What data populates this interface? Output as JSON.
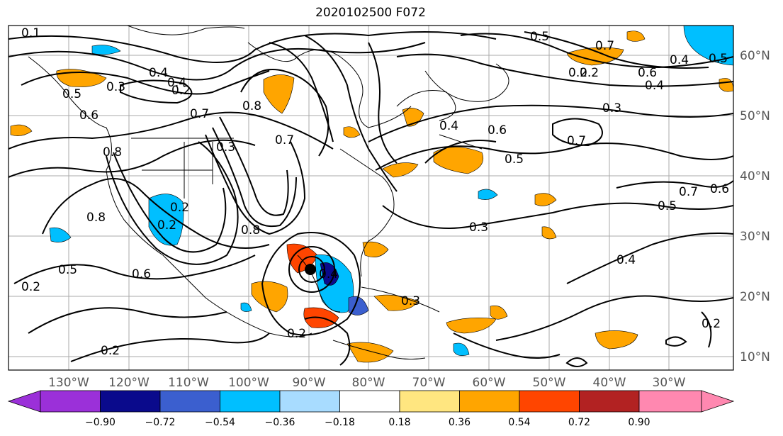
{
  "title": "2020102500 F072",
  "lon_labels": [
    "130°W",
    "120°W",
    "110°W",
    "100°W",
    "90°W",
    "80°W",
    "70°W",
    "60°W",
    "50°W",
    "40°W",
    "30°W"
  ],
  "lat_labels": [
    "60°N",
    "50°N",
    "40°N",
    "30°N",
    "20°N",
    "10°N"
  ],
  "colorbar": {
    "ticks": [
      "−0.90",
      "−0.72",
      "−0.54",
      "−0.36",
      "−0.18",
      "0.18",
      "0.36",
      "0.54",
      "0.72",
      "0.90"
    ],
    "colors": [
      "#9b30d9",
      "#0a0a8c",
      "#3b5fcf",
      "#00bfff",
      "#a8dcff",
      "#ffffff",
      "#ffe680",
      "#ffa500",
      "#ff4500",
      "#b22222",
      "#ff88b0"
    ]
  },
  "contour_labels": [
    "0.1",
    "0.4",
    "0.3",
    "0.2",
    "0.5",
    "0.6",
    "0.7",
    "0.8",
    "0.5",
    "0.6",
    "0.7",
    "0.2",
    "0.4",
    "0.3",
    "0.5",
    "0.7",
    "0.6",
    "0.4",
    "0.5",
    "0.6",
    "0.7",
    "0.3",
    "0.2",
    "0.8",
    "0.2",
    "0.8",
    "0.5",
    "0.4",
    "0.6",
    "0.2",
    "0.3",
    "0.4",
    "0.2",
    "0.2",
    "0.2",
    "0.4",
    "0.7",
    "0.4",
    "0.5",
    "0.3",
    "0.2",
    "0.8"
  ],
  "colors": {
    "contour": "#000000",
    "grid": "#aaaaaa",
    "coast": "#000000"
  }
}
